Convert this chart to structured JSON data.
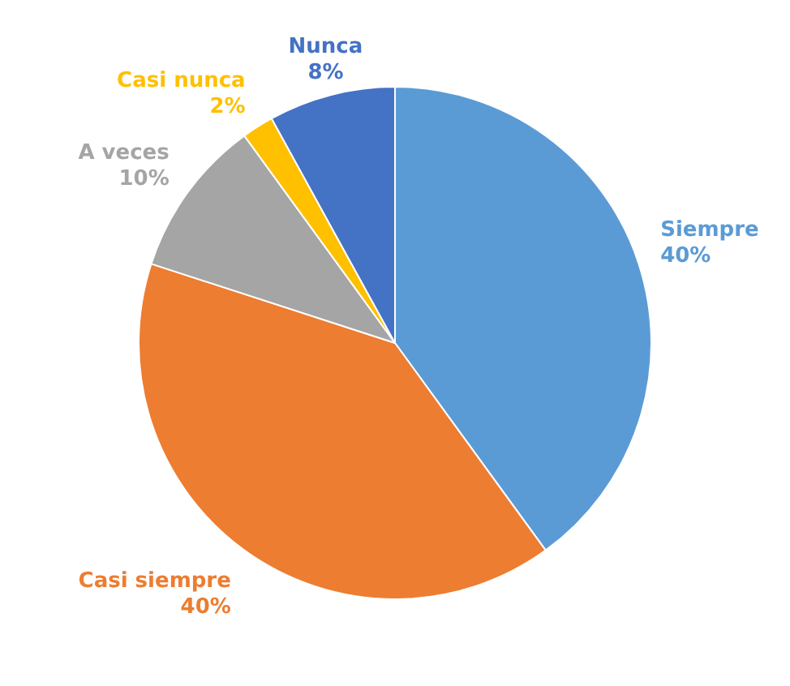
{
  "chart_data": {
    "type": "pie",
    "categories": [
      "Siempre",
      "Casi siempre",
      "A veces",
      "Casi nunca",
      "Nunca"
    ],
    "values": [
      40,
      40,
      10,
      2,
      8
    ],
    "value_labels": [
      "40%",
      "40%",
      "10%",
      "2%",
      "8%"
    ],
    "colors": [
      "#5b9bd5",
      "#ed7d31",
      "#a5a5a5",
      "#ffc000",
      "#4472c4"
    ],
    "legend": false
  }
}
